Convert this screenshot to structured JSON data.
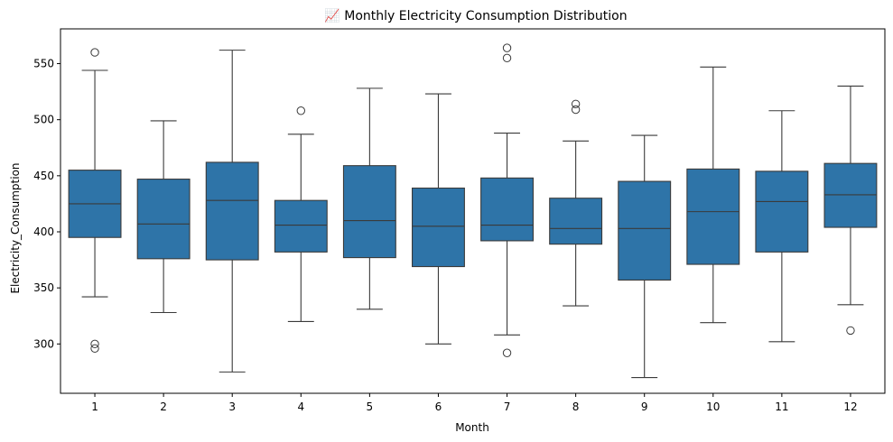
{
  "chart_data": {
    "type": "box",
    "title": "📈 Monthly Electricity Consumption Distribution",
    "xlabel": "Month",
    "ylabel": "Electricity_Consumption",
    "categories": [
      "1",
      "2",
      "3",
      "4",
      "5",
      "6",
      "7",
      "8",
      "9",
      "10",
      "11",
      "12"
    ],
    "ylim": [
      256,
      581
    ],
    "yticks": [
      300,
      350,
      400,
      450,
      500,
      550
    ],
    "grid": false,
    "color": "#2e74a8",
    "edge_color": "#3a3a3a",
    "boxes": [
      {
        "month": "1",
        "whisker_low": 342,
        "q1": 395,
        "median": 425,
        "q3": 455,
        "whisker_high": 544,
        "outliers": [
          560,
          300,
          296
        ]
      },
      {
        "month": "2",
        "whisker_low": 328,
        "q1": 376,
        "median": 407,
        "q3": 447,
        "whisker_high": 499,
        "outliers": []
      },
      {
        "month": "3",
        "whisker_low": 275,
        "q1": 375,
        "median": 428,
        "q3": 462,
        "whisker_high": 562,
        "outliers": []
      },
      {
        "month": "4",
        "whisker_low": 320,
        "q1": 382,
        "median": 406,
        "q3": 428,
        "whisker_high": 487,
        "outliers": [
          508
        ]
      },
      {
        "month": "5",
        "whisker_low": 331,
        "q1": 377,
        "median": 410,
        "q3": 459,
        "whisker_high": 528,
        "outliers": []
      },
      {
        "month": "6",
        "whisker_low": 300,
        "q1": 369,
        "median": 405,
        "q3": 439,
        "whisker_high": 523,
        "outliers": []
      },
      {
        "month": "7",
        "whisker_low": 308,
        "q1": 392,
        "median": 406,
        "q3": 448,
        "whisker_high": 488,
        "outliers": [
          564,
          555,
          292
        ]
      },
      {
        "month": "8",
        "whisker_low": 334,
        "q1": 389,
        "median": 403,
        "q3": 430,
        "whisker_high": 481,
        "outliers": [
          514,
          509
        ]
      },
      {
        "month": "9",
        "whisker_low": 270,
        "q1": 357,
        "median": 403,
        "q3": 445,
        "whisker_high": 486,
        "outliers": []
      },
      {
        "month": "10",
        "whisker_low": 319,
        "q1": 371,
        "median": 418,
        "q3": 456,
        "whisker_high": 547,
        "outliers": []
      },
      {
        "month": "11",
        "whisker_low": 302,
        "q1": 382,
        "median": 427,
        "q3": 454,
        "whisker_high": 508,
        "outliers": []
      },
      {
        "month": "12",
        "whisker_low": 335,
        "q1": 404,
        "median": 433,
        "q3": 461,
        "whisker_high": 530,
        "outliers": [
          312
        ]
      }
    ]
  }
}
